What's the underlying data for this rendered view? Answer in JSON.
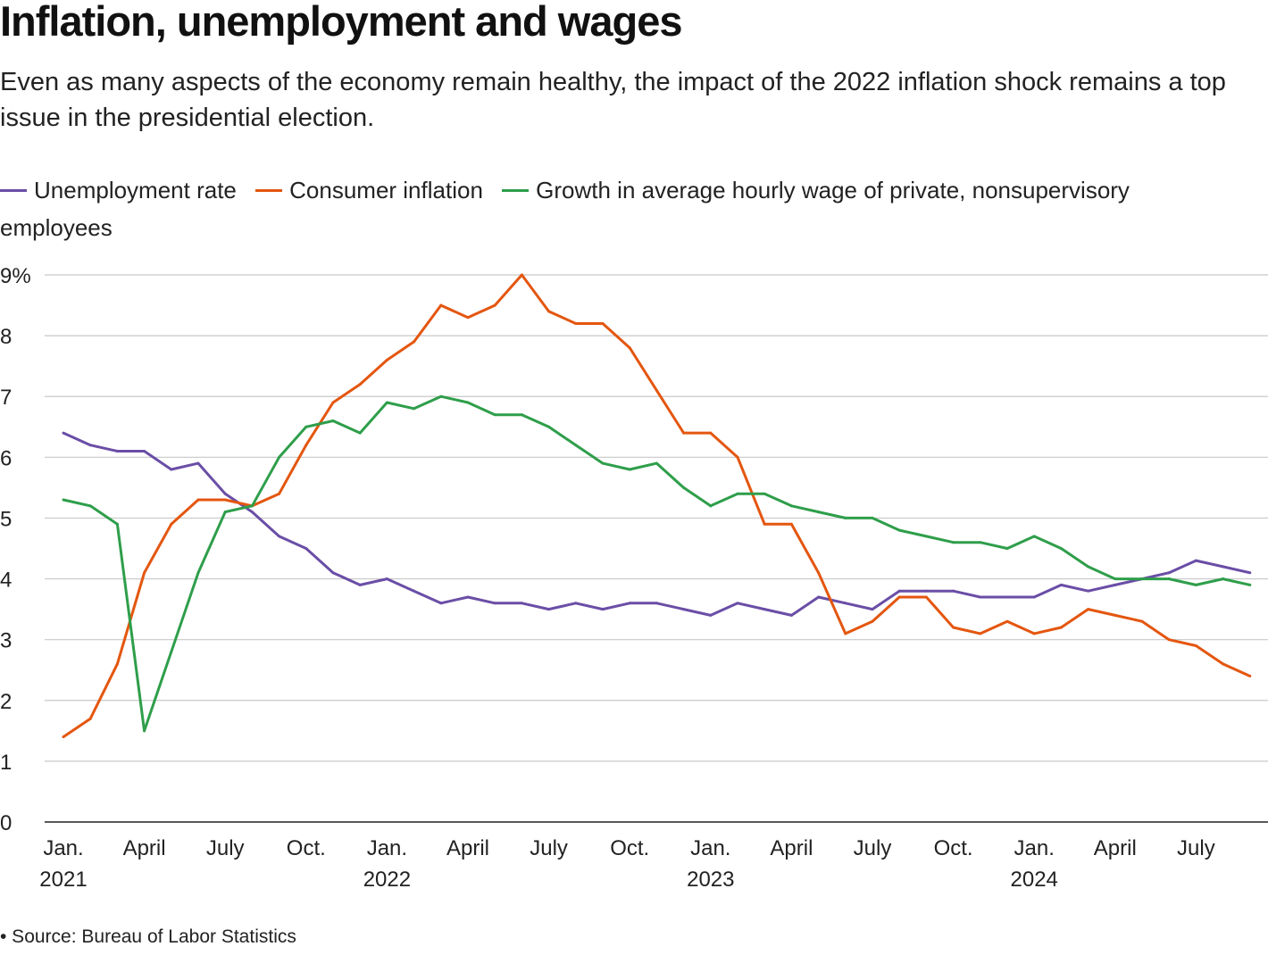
{
  "header": {
    "title": "Inflation, unemployment and wages",
    "subtitle": "Even as many aspects of the economy remain healthy, the impact of the 2022 inflation shock remains a top issue in the presidential election."
  },
  "source": "• Source: Bureau of Labor Statistics",
  "chart_data": {
    "type": "line",
    "title": "Inflation, unemployment and wages",
    "xlabel": "",
    "ylabel": "",
    "ylim": [
      0,
      9
    ],
    "yticks": [
      {
        "v": 0,
        "label": "0"
      },
      {
        "v": 1,
        "label": "1"
      },
      {
        "v": 2,
        "label": "2"
      },
      {
        "v": 3,
        "label": "3"
      },
      {
        "v": 4,
        "label": "4"
      },
      {
        "v": 5,
        "label": "5"
      },
      {
        "v": 6,
        "label": "6"
      },
      {
        "v": 7,
        "label": "7"
      },
      {
        "v": 8,
        "label": "8"
      },
      {
        "v": 9,
        "label": "9%"
      }
    ],
    "grid": true,
    "legend_position": "top",
    "x_start": "Jan. 2021",
    "x_count": 45,
    "xticks": [
      {
        "i": 0,
        "label": "Jan.",
        "year": "2021"
      },
      {
        "i": 3,
        "label": "April"
      },
      {
        "i": 6,
        "label": "July"
      },
      {
        "i": 9,
        "label": "Oct."
      },
      {
        "i": 12,
        "label": "Jan.",
        "year": "2022"
      },
      {
        "i": 15,
        "label": "April"
      },
      {
        "i": 18,
        "label": "July"
      },
      {
        "i": 21,
        "label": "Oct."
      },
      {
        "i": 24,
        "label": "Jan.",
        "year": "2023"
      },
      {
        "i": 27,
        "label": "April"
      },
      {
        "i": 30,
        "label": "July"
      },
      {
        "i": 33,
        "label": "Oct."
      },
      {
        "i": 36,
        "label": "Jan.",
        "year": "2024"
      },
      {
        "i": 39,
        "label": "April"
      },
      {
        "i": 42,
        "label": "July"
      }
    ],
    "series": [
      {
        "name": "Unemployment rate",
        "color": "#6a4ea6",
        "values": [
          6.4,
          6.2,
          6.1,
          6.1,
          5.8,
          5.9,
          5.4,
          5.1,
          4.7,
          4.5,
          4.1,
          3.9,
          4.0,
          3.8,
          3.6,
          3.7,
          3.6,
          3.6,
          3.5,
          3.6,
          3.5,
          3.6,
          3.6,
          3.5,
          3.4,
          3.6,
          3.5,
          3.4,
          3.7,
          3.6,
          3.5,
          3.8,
          3.8,
          3.8,
          3.7,
          3.7,
          3.7,
          3.9,
          3.8,
          3.9,
          4.0,
          4.1,
          4.3,
          4.2,
          4.1
        ]
      },
      {
        "name": "Consumer inflation",
        "color": "#e4560f",
        "values": [
          1.4,
          1.7,
          2.6,
          4.1,
          4.9,
          5.3,
          5.3,
          5.2,
          5.4,
          6.2,
          6.9,
          7.2,
          7.6,
          7.9,
          8.5,
          8.3,
          8.5,
          9.0,
          8.4,
          8.2,
          8.2,
          7.8,
          7.1,
          6.4,
          6.4,
          6.0,
          4.9,
          4.9,
          4.1,
          3.1,
          3.3,
          3.7,
          3.7,
          3.2,
          3.1,
          3.3,
          3.1,
          3.2,
          3.5,
          3.4,
          3.3,
          3.0,
          2.9,
          2.6,
          2.4
        ]
      },
      {
        "name": "Growth in average hourly wage of private, nonsupervisory employees",
        "color": "#2e9e4a",
        "values": [
          5.3,
          5.2,
          4.9,
          1.5,
          2.8,
          4.1,
          5.1,
          5.2,
          6.0,
          6.5,
          6.6,
          6.4,
          6.9,
          6.8,
          7.0,
          6.9,
          6.7,
          6.7,
          6.5,
          6.2,
          5.9,
          5.8,
          5.9,
          5.5,
          5.2,
          5.4,
          5.4,
          5.2,
          5.1,
          5.0,
          5.0,
          4.8,
          4.7,
          4.6,
          4.6,
          4.5,
          4.7,
          4.5,
          4.2,
          4.0,
          4.0,
          4.0,
          3.9,
          4.0,
          3.9
        ]
      }
    ]
  }
}
